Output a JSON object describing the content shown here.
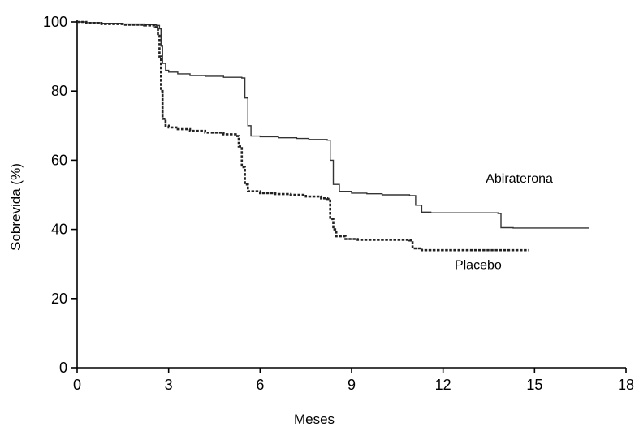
{
  "chart_data": {
    "type": "line",
    "title": "",
    "xlabel": "Meses",
    "ylabel": "Sobrevida (%)",
    "xlim": [
      0,
      18
    ],
    "ylim": [
      0,
      100
    ],
    "xticks": [
      "0",
      "3",
      "6",
      "9",
      "12",
      "15",
      "18"
    ],
    "yticks": [
      "0",
      "20",
      "40",
      "60",
      "80",
      "100"
    ],
    "grid": false,
    "legend": "inline labels",
    "series": [
      {
        "name": "Abiraterona",
        "style": "solid",
        "color": "#333333",
        "x": [
          0,
          0.3,
          0.8,
          1.5,
          2.2,
          2.6,
          2.7,
          2.75,
          2.8,
          2.9,
          3.0,
          3.3,
          3.7,
          4.2,
          4.8,
          5.2,
          5.4,
          5.5,
          5.6,
          5.7,
          6.0,
          6.6,
          7.2,
          7.6,
          8.0,
          8.2,
          8.3,
          8.4,
          8.6,
          9.0,
          9.5,
          10.0,
          10.5,
          10.9,
          11.1,
          11.3,
          11.6,
          12.5,
          13.2,
          13.8,
          13.9,
          14.3,
          15.0,
          16.0,
          16.8
        ],
        "y": [
          100,
          99.8,
          99.6,
          99.4,
          99.2,
          99,
          98,
          93,
          88,
          86,
          85.5,
          85,
          84.5,
          84.3,
          84,
          84,
          83.8,
          78,
          70,
          67,
          66.8,
          66.5,
          66.3,
          66,
          66,
          65.8,
          60,
          53,
          51,
          50.5,
          50.3,
          50,
          50,
          49.8,
          47,
          45,
          44.8,
          44.8,
          44.8,
          44.6,
          40.5,
          40.4,
          40.4,
          40.4,
          40.4
        ]
      },
      {
        "name": "Placebo",
        "style": "dashed",
        "color": "#222222",
        "x": [
          0,
          0.3,
          0.8,
          1.5,
          2.2,
          2.55,
          2.65,
          2.7,
          2.75,
          2.8,
          2.9,
          3.0,
          3.3,
          3.7,
          4.2,
          4.8,
          5.2,
          5.3,
          5.4,
          5.5,
          5.6,
          6.0,
          6.5,
          7.0,
          7.5,
          8.0,
          8.2,
          8.3,
          8.4,
          8.5,
          8.8,
          9.2,
          9.8,
          10.5,
          10.9,
          11.0,
          11.3,
          12.0,
          13.0,
          14.0,
          14.8
        ],
        "y": [
          100,
          99.7,
          99.4,
          99.2,
          99,
          98.5,
          96,
          90,
          80,
          72,
          70,
          69.5,
          69,
          68.5,
          68,
          67.5,
          67,
          64,
          58,
          53,
          51,
          50.5,
          50.2,
          50,
          49.5,
          49,
          48.8,
          43,
          40,
          38,
          37.2,
          37,
          37,
          37,
          36.8,
          34.5,
          34,
          34,
          34,
          34,
          34
        ]
      }
    ]
  }
}
